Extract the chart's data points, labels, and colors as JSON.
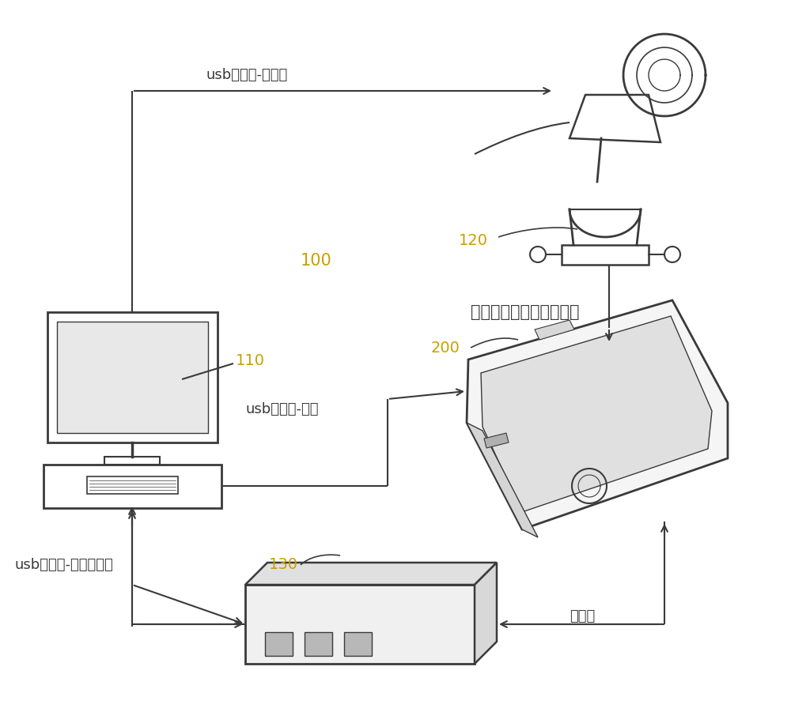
{
  "bg_color": "#ffffff",
  "label_usb_camera": "usb数据线-摄像头",
  "label_usb_phone": "usb数据线-手机",
  "label_usb_power": "usb数据线-电源控制器",
  "label_monitor": "监测手机亮度及内容变化",
  "label_power_cable": "电源线",
  "label_100": "100",
  "label_110": "110",
  "label_120": "120",
  "label_130": "130",
  "label_200": "200",
  "line_color": "#3a3a3a",
  "font_color": "#3a3a3a",
  "font_size": 13,
  "number_color": "#c8a000"
}
